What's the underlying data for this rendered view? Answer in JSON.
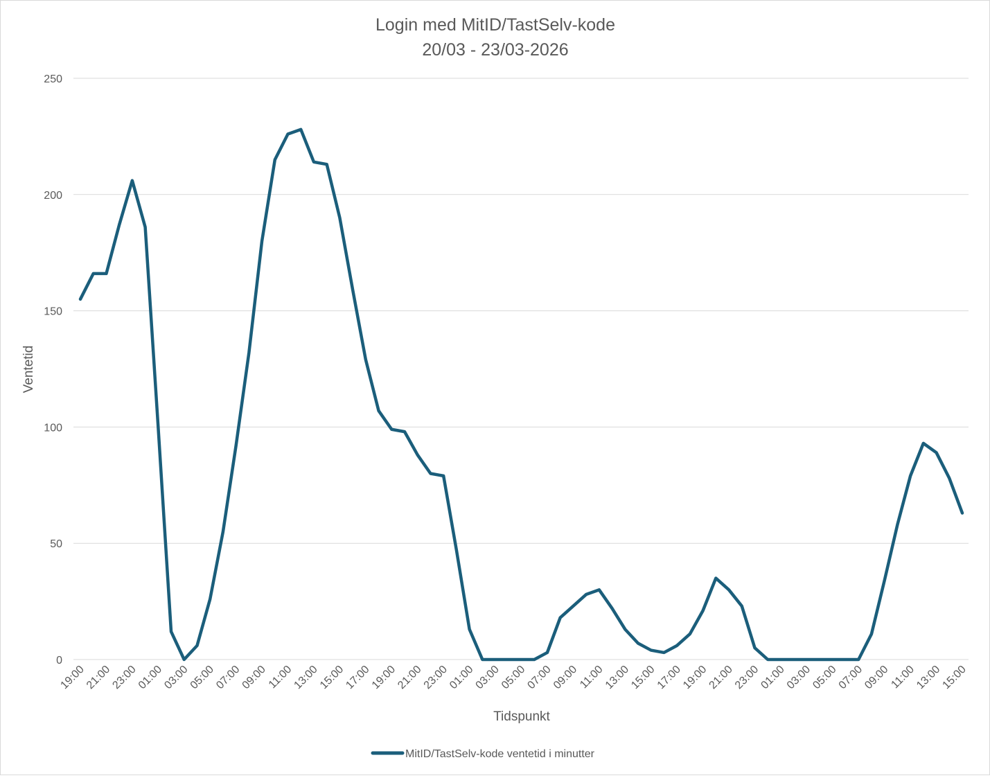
{
  "chart_data": {
    "type": "line",
    "title": "Login med MitID/TastSelv-kode",
    "subtitle": "20/03 - 23/03-2026",
    "xlabel": "Tidspunkt",
    "ylabel": "Ventetid",
    "ylim": [
      0,
      250
    ],
    "yticks": [
      0,
      50,
      100,
      150,
      200,
      250
    ],
    "grid": true,
    "legend_position": "bottom",
    "line_color": "#1b5e7b",
    "x": [
      "19:00",
      "20:00",
      "21:00",
      "22:00",
      "23:00",
      "00:00",
      "01:00",
      "02:00",
      "03:00",
      "04:00",
      "05:00",
      "06:00",
      "07:00",
      "08:00",
      "09:00",
      "10:00",
      "11:00",
      "12:00",
      "13:00",
      "14:00",
      "15:00",
      "16:00",
      "17:00",
      "18:00",
      "19:00",
      "20:00",
      "21:00",
      "22:00",
      "23:00",
      "00:00",
      "01:00",
      "02:00",
      "03:00",
      "04:00",
      "05:00",
      "06:00",
      "07:00",
      "08:00",
      "09:00",
      "10:00",
      "11:00",
      "12:00",
      "13:00",
      "14:00",
      "15:00",
      "16:00",
      "17:00",
      "18:00",
      "19:00",
      "20:00",
      "21:00",
      "22:00",
      "23:00",
      "00:00",
      "01:00",
      "02:00",
      "03:00",
      "04:00",
      "05:00",
      "06:00",
      "07:00",
      "08:00",
      "09:00",
      "10:00",
      "11:00",
      "12:00",
      "13:00",
      "14:00",
      "15:00"
    ],
    "x_tick_labels": [
      "19:00",
      "21:00",
      "23:00",
      "01:00",
      "03:00",
      "05:00",
      "07:00",
      "09:00",
      "11:00",
      "13:00",
      "15:00",
      "17:00",
      "19:00",
      "21:00",
      "23:00",
      "01:00",
      "03:00",
      "05:00",
      "07:00",
      "09:00",
      "11:00",
      "13:00",
      "15:00",
      "17:00",
      "19:00",
      "21:00",
      "23:00",
      "01:00",
      "03:00",
      "05:00",
      "07:00",
      "09:00",
      "11:00",
      "13:00",
      "15:00"
    ],
    "series": [
      {
        "name": "MitID/TastSelv-kode ventetid i minutter",
        "values": [
          155,
          166,
          166,
          187,
          206,
          186,
          100,
          12,
          0,
          6,
          26,
          55,
          92,
          132,
          180,
          215,
          226,
          228,
          214,
          213,
          190,
          159,
          129,
          107,
          99,
          98,
          88,
          80,
          79,
          47,
          13,
          0,
          0,
          0,
          0,
          0,
          3,
          18,
          23,
          28,
          30,
          22,
          13,
          7,
          4,
          3,
          6,
          11,
          21,
          35,
          30,
          23,
          5,
          0,
          0,
          0,
          0,
          0,
          0,
          0,
          0,
          11,
          34,
          58,
          79,
          93,
          89,
          78,
          63
        ]
      }
    ]
  }
}
